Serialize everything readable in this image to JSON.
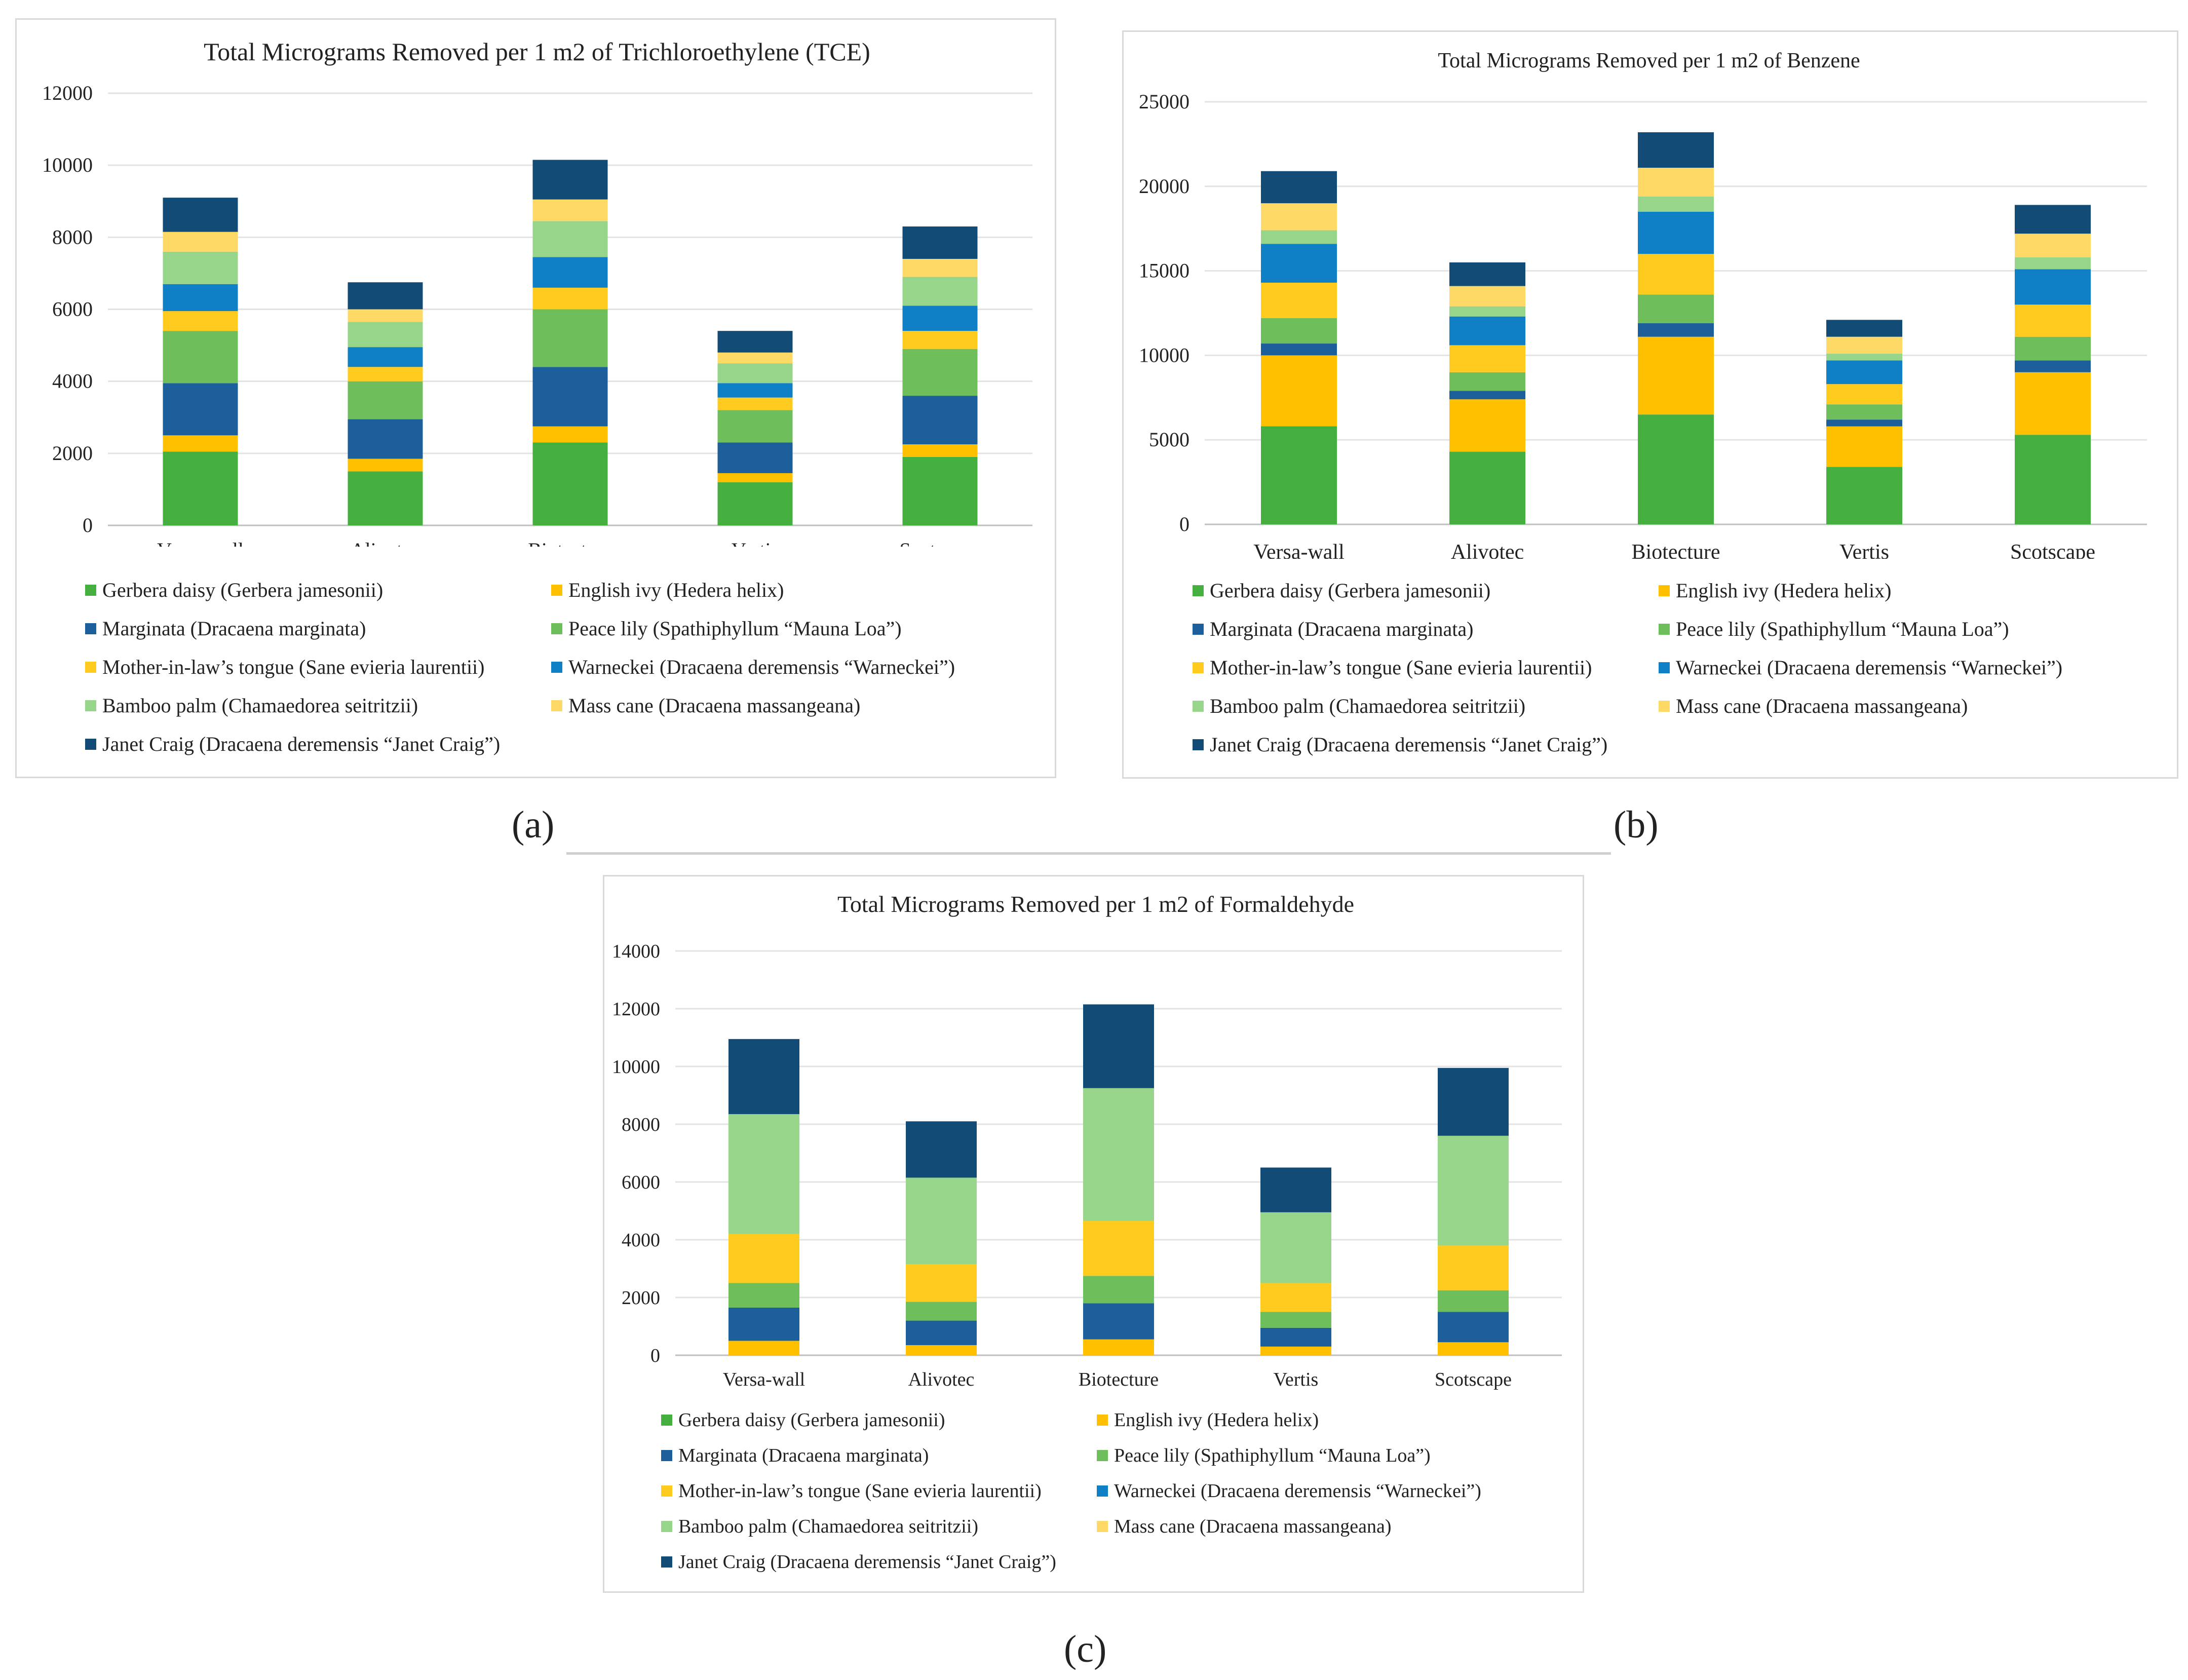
{
  "series_colors": [
    "#45b03f",
    "#ffc000",
    "#1c5f9a",
    "#6fbe5c",
    "#ffcb1f",
    "#0f7fc6",
    "#97d58a",
    "#ffd966",
    "#124b75"
  ],
  "legend": [
    "Gerbera daisy (Gerbera jamesonii)",
    "English ivy (Hedera helix)",
    "Marginata (Dracaena marginata)",
    "Peace lily (Spathiphyllum “Mauna Loa”)",
    "Mother-in-law’s tongue (Sane evieria laurentii)",
    "Warneckei (Dracaena deremensis “Warneckei”)",
    "Bamboo palm (Chamaedorea seitritzii)",
    "Mass cane (Dracaena massangeana)",
    "Janet Craig (Dracaena deremensis “Janet Craig”)"
  ],
  "captions": {
    "a": "(a)",
    "b": "(b)",
    "c": "(c)"
  },
  "chart_data": [
    {
      "id": "a",
      "type": "bar",
      "stacked": true,
      "title": "Total Micrograms Removed per 1 m2 of Trichloroethylene (TCE)",
      "categories": [
        "Versa-wall",
        "Alivotec",
        "Biotecture",
        "Vertis",
        "Scotscape"
      ],
      "ylim": [
        0,
        12000
      ],
      "yticks": [
        0,
        2000,
        4000,
        6000,
        8000,
        10000,
        12000
      ],
      "ytick_labels": [
        "0",
        "2000",
        "4000",
        "6000",
        "8000",
        "10000",
        "12000"
      ],
      "series": [
        {
          "name": "Gerbera daisy (Gerbera jamesonii)",
          "values": [
            2050,
            1500,
            2300,
            1200,
            1900
          ]
        },
        {
          "name": "English ivy (Hedera helix)",
          "values": [
            450,
            350,
            450,
            250,
            350
          ]
        },
        {
          "name": "Marginata (Dracaena marginata)",
          "values": [
            1450,
            1100,
            1650,
            850,
            1350
          ]
        },
        {
          "name": "Peace lily (Spathiphyllum “Mauna Loa”)",
          "values": [
            1450,
            1050,
            1600,
            900,
            1300
          ]
        },
        {
          "name": "Mother-in-law’s tongue (Sane evieria laurentii)",
          "values": [
            550,
            400,
            600,
            350,
            500
          ]
        },
        {
          "name": "Warneckei (Dracaena deremensis “Warneckei”)",
          "values": [
            750,
            550,
            850,
            400,
            700
          ]
        },
        {
          "name": "Bamboo palm (Chamaedorea seitritzii)",
          "values": [
            900,
            700,
            1000,
            550,
            800
          ]
        },
        {
          "name": "Mass cane (Dracaena massangeana)",
          "values": [
            550,
            350,
            600,
            300,
            500
          ]
        },
        {
          "name": "Janet Craig (Dracaena deremensis “Janet Craig”)",
          "values": [
            950,
            750,
            1100,
            600,
            900
          ]
        }
      ]
    },
    {
      "id": "b",
      "type": "bar",
      "stacked": true,
      "title": "Total Micrograms Removed per 1 m2 of Benzene",
      "categories": [
        "Versa-wall",
        "Alivotec",
        "Biotecture",
        "Vertis",
        "Scotscape"
      ],
      "ylim": [
        0,
        25000
      ],
      "yticks": [
        0,
        5000,
        10000,
        15000,
        20000,
        25000
      ],
      "ytick_labels": [
        "0",
        "5000",
        "10000",
        "15000",
        "20000",
        "25000"
      ],
      "series": [
        {
          "name": "Gerbera daisy (Gerbera jamesonii)",
          "values": [
            5800,
            4300,
            6500,
            3400,
            5300
          ]
        },
        {
          "name": "English ivy (Hedera helix)",
          "values": [
            4200,
            3100,
            4600,
            2400,
            3700
          ]
        },
        {
          "name": "Marginata (Dracaena marginata)",
          "values": [
            700,
            500,
            800,
            400,
            700
          ]
        },
        {
          "name": "Peace lily (Spathiphyllum “Mauna Loa”)",
          "values": [
            1500,
            1100,
            1700,
            900,
            1400
          ]
        },
        {
          "name": "Mother-in-law’s tongue (Sane evieria laurentii)",
          "values": [
            2100,
            1600,
            2400,
            1200,
            1900
          ]
        },
        {
          "name": "Warneckei (Dracaena deremensis “Warneckei”)",
          "values": [
            2300,
            1700,
            2500,
            1400,
            2100
          ]
        },
        {
          "name": "Bamboo palm (Chamaedorea seitritzii)",
          "values": [
            800,
            600,
            900,
            400,
            700
          ]
        },
        {
          "name": "Mass cane (Dracaena massangeana)",
          "values": [
            1600,
            1200,
            1700,
            1000,
            1400
          ]
        },
        {
          "name": "Janet Craig (Dracaena deremensis “Janet Craig”)",
          "values": [
            1900,
            1400,
            2100,
            1000,
            1700
          ]
        }
      ]
    },
    {
      "id": "c",
      "type": "bar",
      "stacked": true,
      "title": "Total Micrograms Removed per 1 m2 of Formaldehyde",
      "categories": [
        "Versa-wall",
        "Alivotec",
        "Biotecture",
        "Vertis",
        "Scotscape"
      ],
      "ylim": [
        0,
        14000
      ],
      "yticks": [
        0,
        2000,
        4000,
        6000,
        8000,
        10000,
        12000,
        14000
      ],
      "ytick_labels": [
        "0",
        "2000",
        "4000",
        "6000",
        "8000",
        "10000",
        "12000",
        "14000"
      ],
      "series": [
        {
          "name": "Gerbera daisy (Gerbera jamesonii)",
          "values": [
            0,
            0,
            0,
            0,
            0
          ]
        },
        {
          "name": "English ivy (Hedera helix)",
          "values": [
            500,
            350,
            550,
            300,
            450
          ]
        },
        {
          "name": "Marginata (Dracaena marginata)",
          "values": [
            1150,
            850,
            1250,
            650,
            1050
          ]
        },
        {
          "name": "Peace lily (Spathiphyllum “Mauna Loa”)",
          "values": [
            850,
            650,
            950,
            550,
            750
          ]
        },
        {
          "name": "Mother-in-law’s tongue (Sane evieria laurentii)",
          "values": [
            1700,
            1300,
            1900,
            1000,
            1550
          ]
        },
        {
          "name": "Warneckei (Dracaena deremensis “Warneckei”)",
          "values": [
            0,
            0,
            0,
            0,
            0
          ]
        },
        {
          "name": "Bamboo palm (Chamaedorea seitritzii)",
          "values": [
            4150,
            3000,
            4600,
            2450,
            3800
          ]
        },
        {
          "name": "Mass cane (Dracaena massangeana)",
          "values": [
            0,
            0,
            0,
            0,
            0
          ]
        },
        {
          "name": "Janet Craig (Dracaena deremensis “Janet Craig”)",
          "values": [
            2600,
            1950,
            2900,
            1550,
            2350
          ]
        }
      ]
    }
  ]
}
